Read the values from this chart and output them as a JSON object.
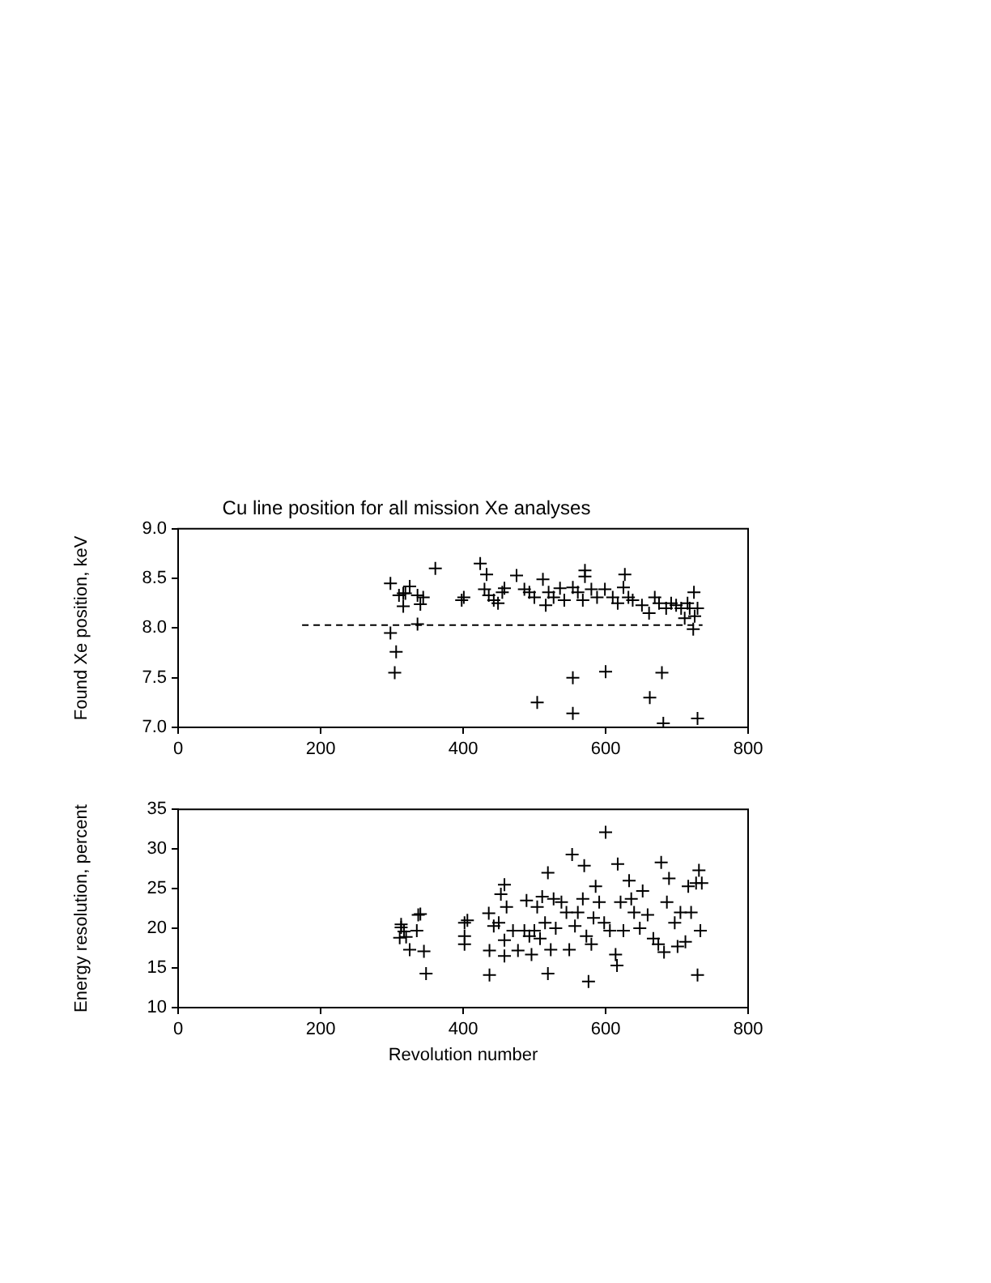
{
  "chart_data": [
    {
      "type": "scatter",
      "title": "Cu line position for all mission Xe analyses",
      "ylabel": "Found Xe position, keV",
      "xlim": [
        0,
        800
      ],
      "xticks": [
        0,
        200,
        400,
        600,
        800
      ],
      "ylim": [
        7.0,
        9.0
      ],
      "yticks": [
        {
          "value": 7.0,
          "label": "7.0"
        },
        {
          "value": 7.5,
          "label": "7.5"
        },
        {
          "value": 8.0,
          "label": "8.0"
        },
        {
          "value": 8.5,
          "label": "8.5"
        },
        {
          "value": 9.0,
          "label": "9.0"
        }
      ],
      "series": [
        {
          "color": "#000000",
          "marker": "cross",
          "x": [
            298,
            298,
            306,
            304,
            310,
            316,
            316,
            319,
            325,
            336,
            340,
            336,
            344,
            361,
            398,
            401,
            424,
            433,
            430,
            436,
            443,
            449,
            455,
            458,
            475,
            486,
            493,
            500,
            504,
            512,
            516,
            520,
            527,
            536,
            542,
            554,
            554,
            554,
            561,
            571,
            571,
            568,
            580,
            588,
            599,
            600,
            610,
            617,
            627,
            625,
            632,
            638,
            651,
            662,
            661,
            669,
            675,
            679,
            681,
            685,
            692,
            699,
            706,
            711,
            715,
            718,
            724,
            725,
            729,
            723,
            729
          ],
          "values": [
            8.45,
            7.95,
            7.76,
            7.55,
            8.33,
            8.35,
            8.22,
            8.35,
            8.42,
            8.33,
            8.24,
            8.04,
            8.31,
            8.6,
            8.28,
            8.31,
            8.65,
            8.54,
            8.39,
            8.33,
            8.28,
            8.25,
            8.36,
            8.4,
            8.53,
            8.39,
            8.36,
            8.31,
            7.25,
            8.49,
            8.23,
            8.36,
            8.31,
            8.4,
            8.28,
            8.41,
            7.5,
            7.14,
            8.36,
            8.58,
            8.52,
            8.28,
            8.39,
            8.31,
            8.39,
            7.56,
            8.31,
            8.25,
            8.54,
            8.41,
            8.31,
            8.28,
            8.23,
            7.3,
            8.15,
            8.31,
            8.25,
            7.55,
            7.04,
            8.2,
            8.25,
            8.23,
            8.2,
            8.1,
            8.25,
            8.2,
            8.36,
            8.12,
            8.2,
            7.99,
            7.09
          ]
        },
        {
          "type": "line",
          "color": "#000000",
          "marker": "none",
          "line_style": "dashed",
          "x": [
            174,
            736
          ],
          "values": [
            8.03,
            8.03
          ]
        }
      ]
    },
    {
      "type": "scatter",
      "xlabel": "Revolution number",
      "ylabel": "Energy resolution, percent",
      "xlim": [
        0,
        800
      ],
      "xticks": [
        0,
        200,
        400,
        600,
        800
      ],
      "ylim": [
        10,
        35
      ],
      "yticks": [
        10,
        15,
        20,
        25,
        30,
        35
      ],
      "series": [
        {
          "color": "#000000",
          "marker": "cross",
          "x": [
            313,
            311,
            317,
            320,
            325,
            335,
            337,
            340,
            345,
            348,
            313,
            402,
            402,
            402,
            406,
            436,
            437,
            437,
            443,
            450,
            453,
            458,
            461,
            458,
            458,
            470,
            477,
            486,
            489,
            493,
            496,
            500,
            504,
            508,
            511,
            515,
            519,
            519,
            523,
            527,
            530,
            538,
            545,
            549,
            553,
            557,
            561,
            568,
            570,
            573,
            576,
            580,
            583,
            586,
            591,
            598,
            600,
            606,
            614,
            616,
            617,
            621,
            625,
            633,
            636,
            640,
            648,
            652,
            659,
            667,
            674,
            678,
            682,
            686,
            689,
            697,
            701,
            705,
            712,
            716,
            720,
            727,
            731,
            729,
            733,
            735
          ],
          "values": [
            20.1,
            18.8,
            19.6,
            18.9,
            17.3,
            19.7,
            21.7,
            21.8,
            17.1,
            14.3,
            20.5,
            20.7,
            19.0,
            18.0,
            21.0,
            21.9,
            17.2,
            14.1,
            20.3,
            20.7,
            24.3,
            25.5,
            22.7,
            18.5,
            16.5,
            19.7,
            17.2,
            19.7,
            23.5,
            19.0,
            16.7,
            19.7,
            22.7,
            18.7,
            24.0,
            20.7,
            27.0,
            14.3,
            17.3,
            23.7,
            20.0,
            23.3,
            22.0,
            17.3,
            29.3,
            20.3,
            22.0,
            23.7,
            27.9,
            19.0,
            13.3,
            18.0,
            21.3,
            25.3,
            23.3,
            20.7,
            32.1,
            19.7,
            16.7,
            15.3,
            28.1,
            23.3,
            19.7,
            26.0,
            23.7,
            22.0,
            20.0,
            24.7,
            21.7,
            18.7,
            18.0,
            28.3,
            17.0,
            23.3,
            26.3,
            20.7,
            17.7,
            22.0,
            18.3,
            25.3,
            22.0,
            25.7,
            27.3,
            14.1,
            19.7,
            25.7
          ]
        }
      ]
    }
  ]
}
